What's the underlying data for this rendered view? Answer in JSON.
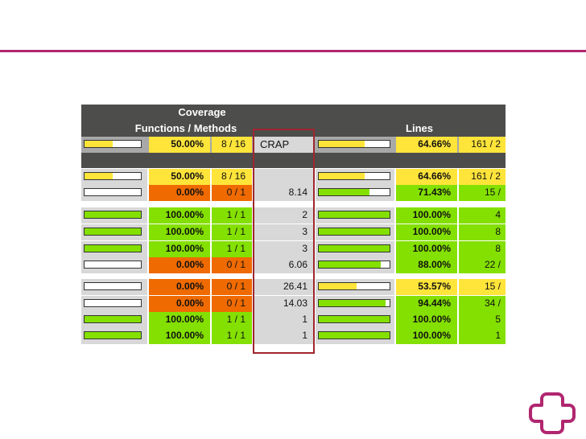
{
  "colors": {
    "accent": "#b1266f",
    "header_dark": "#4d4d4b",
    "header_gray": "#a8a8a8",
    "low": "#ef6a00",
    "medium": "#ffe43a",
    "high": "#84e000",
    "neutral": "#d8d8d8"
  },
  "header": {
    "coverage": "Coverage",
    "functions_methods": "Functions / Methods",
    "lines": "Lines",
    "crap": "CRAP"
  },
  "summary_row": {
    "func_bar": 0.5,
    "func_pct": "50.00%",
    "func_ratio": "8 / 16",
    "crap": "CRAP",
    "line_bar": 0.6466,
    "line_pct": "64.66%",
    "line_ratio": "161 / 2"
  },
  "rows": [
    {
      "type": "subtotal",
      "func_bar": 0.5,
      "func_pct": "50.00%",
      "func_ratio": "8 / 16",
      "crap": "",
      "line_bar": 0.6466,
      "line_pct": "64.66%",
      "line_ratio": "161 / 2",
      "func_level": "medium",
      "line_level": "medium"
    },
    {
      "type": "method",
      "func_bar": 0,
      "func_pct": "0.00%",
      "func_ratio": "0 / 1",
      "crap": "8.14",
      "line_bar": 0.7143,
      "line_pct": "71.43%",
      "line_ratio": "15 /",
      "func_level": "low",
      "line_level": "high"
    },
    {
      "type": "method",
      "func_bar": 1,
      "func_pct": "100.00%",
      "func_ratio": "1 / 1",
      "crap": "2",
      "line_bar": 1,
      "line_pct": "100.00%",
      "line_ratio": "4",
      "func_level": "high",
      "line_level": "high"
    },
    {
      "type": "method",
      "func_bar": 1,
      "func_pct": "100.00%",
      "func_ratio": "1 / 1",
      "crap": "3",
      "line_bar": 1,
      "line_pct": "100.00%",
      "line_ratio": "8",
      "func_level": "high",
      "line_level": "high"
    },
    {
      "type": "method",
      "func_bar": 1,
      "func_pct": "100.00%",
      "func_ratio": "1 / 1",
      "crap": "3",
      "line_bar": 1,
      "line_pct": "100.00%",
      "line_ratio": "8",
      "func_level": "high",
      "line_level": "high"
    },
    {
      "type": "method",
      "func_bar": 0,
      "func_pct": "0.00%",
      "func_ratio": "0 / 1",
      "crap": "6.06",
      "line_bar": 0.88,
      "line_pct": "88.00%",
      "line_ratio": "22 /",
      "func_level": "low",
      "line_level": "high"
    },
    {
      "type": "method",
      "func_bar": 0,
      "func_pct": "0.00%",
      "func_ratio": "0 / 1",
      "crap": "26.41",
      "line_bar": 0.5357,
      "line_pct": "53.57%",
      "line_ratio": "15 /",
      "func_level": "low",
      "line_level": "medium"
    },
    {
      "type": "method",
      "func_bar": 0,
      "func_pct": "0.00%",
      "func_ratio": "0 / 1",
      "crap": "14.03",
      "line_bar": 0.9444,
      "line_pct": "94.44%",
      "line_ratio": "34 /",
      "func_level": "low",
      "line_level": "high"
    },
    {
      "type": "method",
      "func_bar": 1,
      "func_pct": "100.00%",
      "func_ratio": "1 / 1",
      "crap": "1",
      "line_bar": 1,
      "line_pct": "100.00%",
      "line_ratio": "5",
      "func_level": "high",
      "line_level": "high"
    },
    {
      "type": "method",
      "func_bar": 1,
      "func_pct": "100.00%",
      "func_ratio": "1 / 1",
      "crap": "1",
      "line_bar": 1,
      "line_pct": "100.00%",
      "line_ratio": "1",
      "func_level": "high",
      "line_level": "high"
    }
  ]
}
